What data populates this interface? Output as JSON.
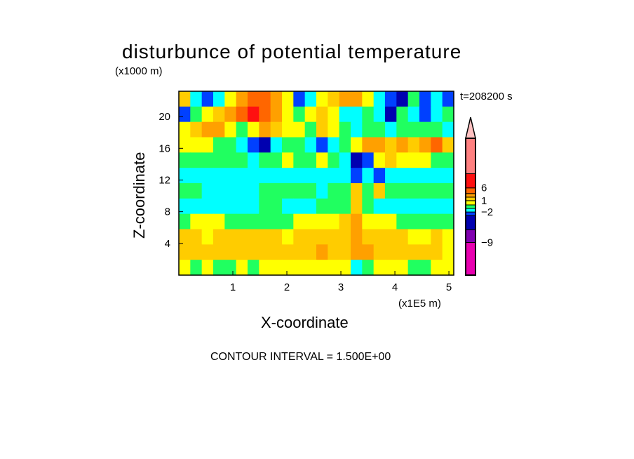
{
  "chart_data": {
    "type": "heatmap",
    "title": "disturbunce of potential temperature",
    "xlabel": "X-coordinate",
    "ylabel": "Z-coordinate",
    "x_unit": "(x1E5 m)",
    "y_unit": "(x1000 m)",
    "time_label": "t=208200 s",
    "contour_interval_label": "CONTOUR INTERVAL = 1.500E+00",
    "xlim": [
      0,
      5.09
    ],
    "ylim": [
      0,
      23.2
    ],
    "xticks": [
      1,
      2,
      3,
      4,
      5
    ],
    "yticks": [
      4,
      8,
      12,
      16,
      20
    ],
    "colorbar": {
      "colors": [
        "#e800b0",
        "#8000b0",
        "#0000b0",
        "#0040ff",
        "#00ffff",
        "#20ff60",
        "#ffff00",
        "#ffcc00",
        "#ffa000",
        "#ff6600",
        "#ff1010",
        "#ff8080"
      ],
      "extend_color": "#ffc0c0",
      "labels": [
        {
          "text": "6",
          "at_level": 10
        },
        {
          "text": "1",
          "at_level": 7
        },
        {
          "text": "-2",
          "at_level": 4
        },
        {
          "text": "-9",
          "at_level": 1
        }
      ]
    },
    "grid_note": "rows top (high z) to bottom; each digit/letter is a color level index 0-11",
    "grid_rows": [
      "743468998634678864325343",
      "356789a98656764454254345",
      "678865687665765455455554",
      "666554324554345688787897",
      "555555455655654236766655",
      "444444444444444343444444",
      "554444455555455757555555",
      "444444455444555754444444",
      "566655555566667866655555",
      "776777777677777877776676",
      "777777777777877887777776",
      "656556566666666456665566"
    ]
  }
}
